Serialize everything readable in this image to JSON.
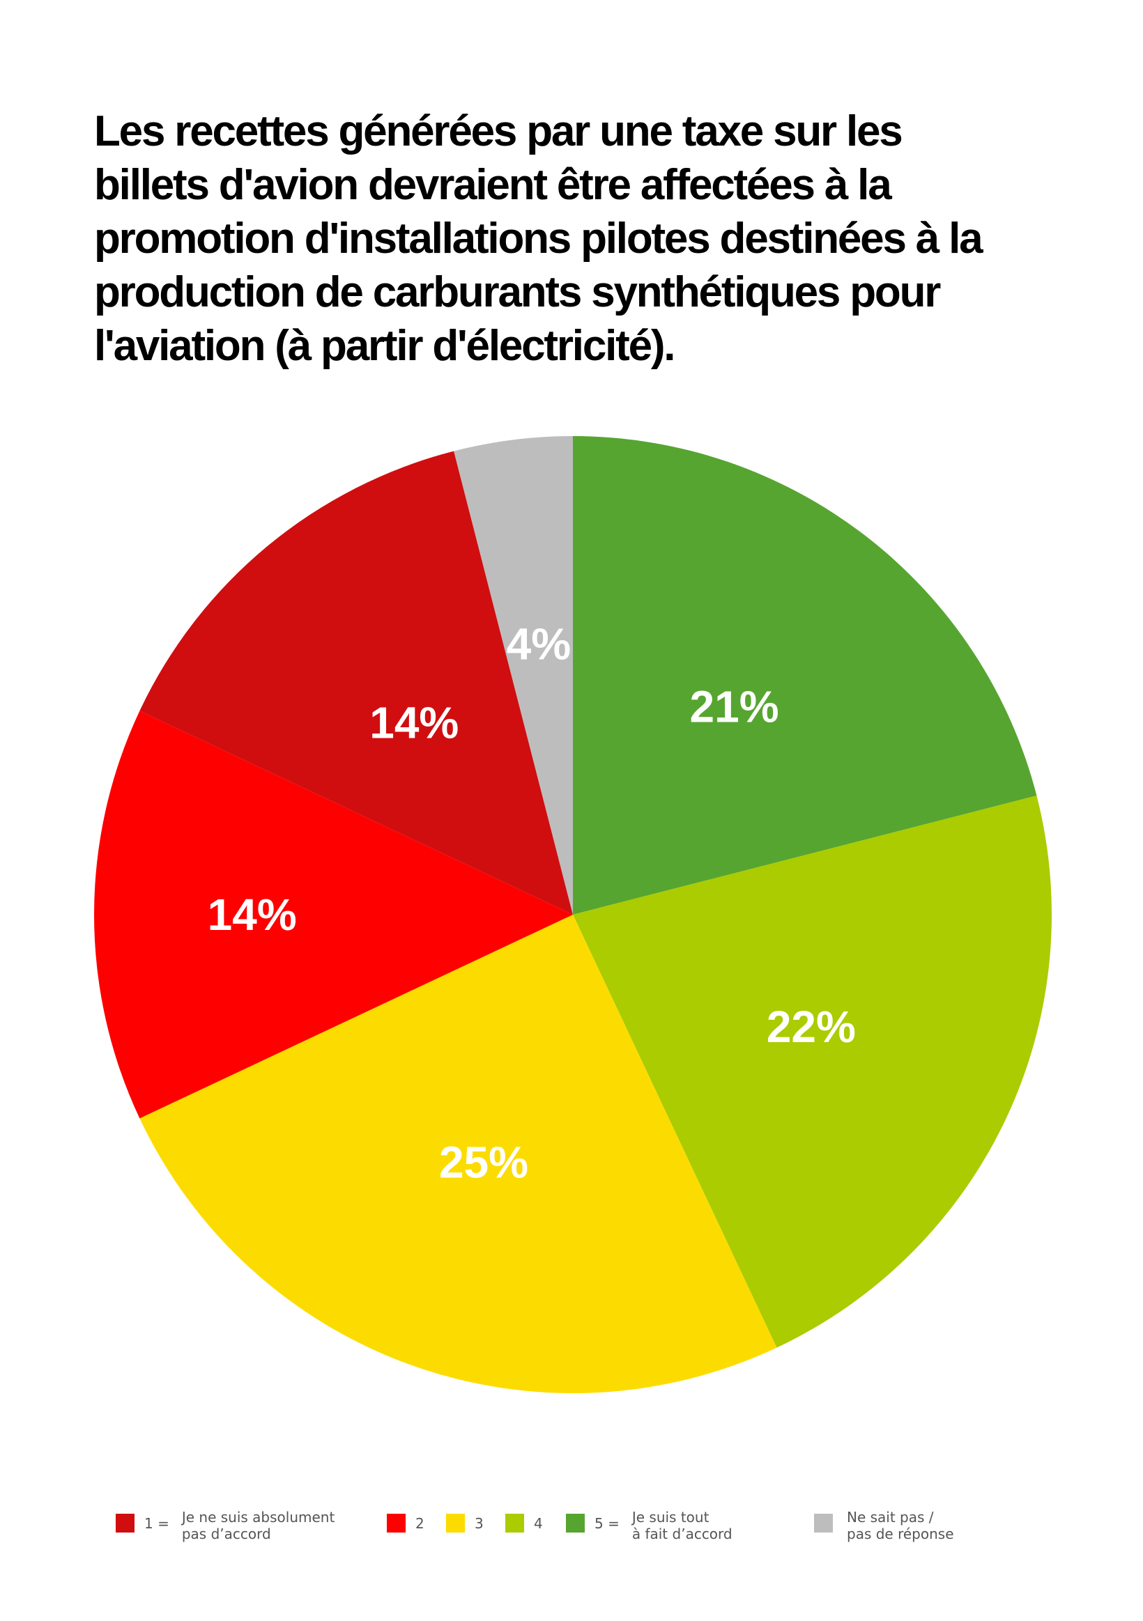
{
  "title_lines": [
    "Les recettes générées par une taxe sur les",
    "billets d'avion devraient être affectées à la",
    "promotion d'installations pilotes destinées à la",
    "production de carburants synthétiques pour",
    "l'aviation (à partir d'électricité)."
  ],
  "chart_data": {
    "type": "pie",
    "title": "Les recettes générées par une taxe sur les billets d'avion devraient être affectées à la promotion d'installations pilotes destinées à la production de carburants synthétiques pour l'aviation (à partir d'électricité).",
    "start": "12 o'clock, clockwise",
    "slices": [
      {
        "key": "5",
        "value": 21,
        "label": "21%",
        "color": "#56a530"
      },
      {
        "key": "4",
        "value": 22,
        "label": "22%",
        "color": "#aacc00"
      },
      {
        "key": "3",
        "value": 25,
        "label": "25%",
        "color": "#fcdc00"
      },
      {
        "key": "2",
        "value": 14,
        "label": "14%",
        "color": "#ff0000"
      },
      {
        "key": "1",
        "value": 14,
        "label": "14%",
        "color": "#d00e10"
      },
      {
        "key": "na",
        "value": 4,
        "label": "4%",
        "color": "#bdbdbd"
      }
    ],
    "legend": [
      {
        "num": "1 =",
        "text": "Je ne suis absolument\npas d’accord",
        "color": "#d00e10"
      },
      {
        "num": "2",
        "text": "",
        "color": "#ff0000"
      },
      {
        "num": "3",
        "text": "",
        "color": "#fcdc00"
      },
      {
        "num": "4",
        "text": "",
        "color": "#aacc00"
      },
      {
        "num": "5 =",
        "text": "Je suis tout\nà fait d’accord",
        "color": "#56a530"
      },
      {
        "num": "",
        "text": "Ne sait pas /\npas de réponse",
        "color": "#bdbdbd"
      }
    ],
    "legend_placement": "bottom"
  }
}
